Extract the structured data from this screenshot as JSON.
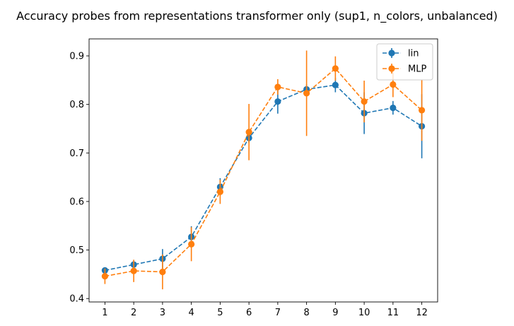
{
  "chart_data": {
    "type": "line",
    "title": "Accuracy probes from representations transformer only (sup1, n_colors, unbalanced)",
    "xlabel": "",
    "ylabel": "",
    "x": [
      1,
      2,
      3,
      4,
      5,
      6,
      7,
      8,
      9,
      10,
      11,
      12
    ],
    "xticks": [
      "1",
      "2",
      "3",
      "4",
      "5",
      "6",
      "7",
      "8",
      "9",
      "10",
      "11",
      "12"
    ],
    "yticks": [
      "0.4",
      "0.5",
      "0.6",
      "0.7",
      "0.8",
      "0.9"
    ],
    "ytick_values": [
      0.4,
      0.5,
      0.6,
      0.7,
      0.8,
      0.9
    ],
    "xlim": [
      0.45,
      12.55
    ],
    "ylim": [
      0.393,
      0.935
    ],
    "grid": false,
    "legend_position": "top-right",
    "series": [
      {
        "name": "lin",
        "color": "#1f77b4",
        "linestyle": "dashed",
        "marker": "circle",
        "values": [
          0.458,
          0.47,
          0.482,
          0.527,
          0.63,
          0.731,
          0.806,
          0.831,
          0.84,
          0.782,
          0.793,
          0.755
        ],
        "errors": [
          0.004,
          0.008,
          0.02,
          0.022,
          0.018,
          0.01,
          0.025,
          0.01,
          0.015,
          0.043,
          0.014,
          0.066
        ]
      },
      {
        "name": "MLP",
        "color": "#ff7f0e",
        "linestyle": "dashed",
        "marker": "circle",
        "values": [
          0.446,
          0.457,
          0.455,
          0.512,
          0.62,
          0.743,
          0.836,
          0.823,
          0.874,
          0.806,
          0.841,
          0.788
        ],
        "errors": [
          0.016,
          0.023,
          0.036,
          0.035,
          0.025,
          0.058,
          0.016,
          0.088,
          0.025,
          0.043,
          0.026,
          0.063
        ]
      }
    ]
  }
}
